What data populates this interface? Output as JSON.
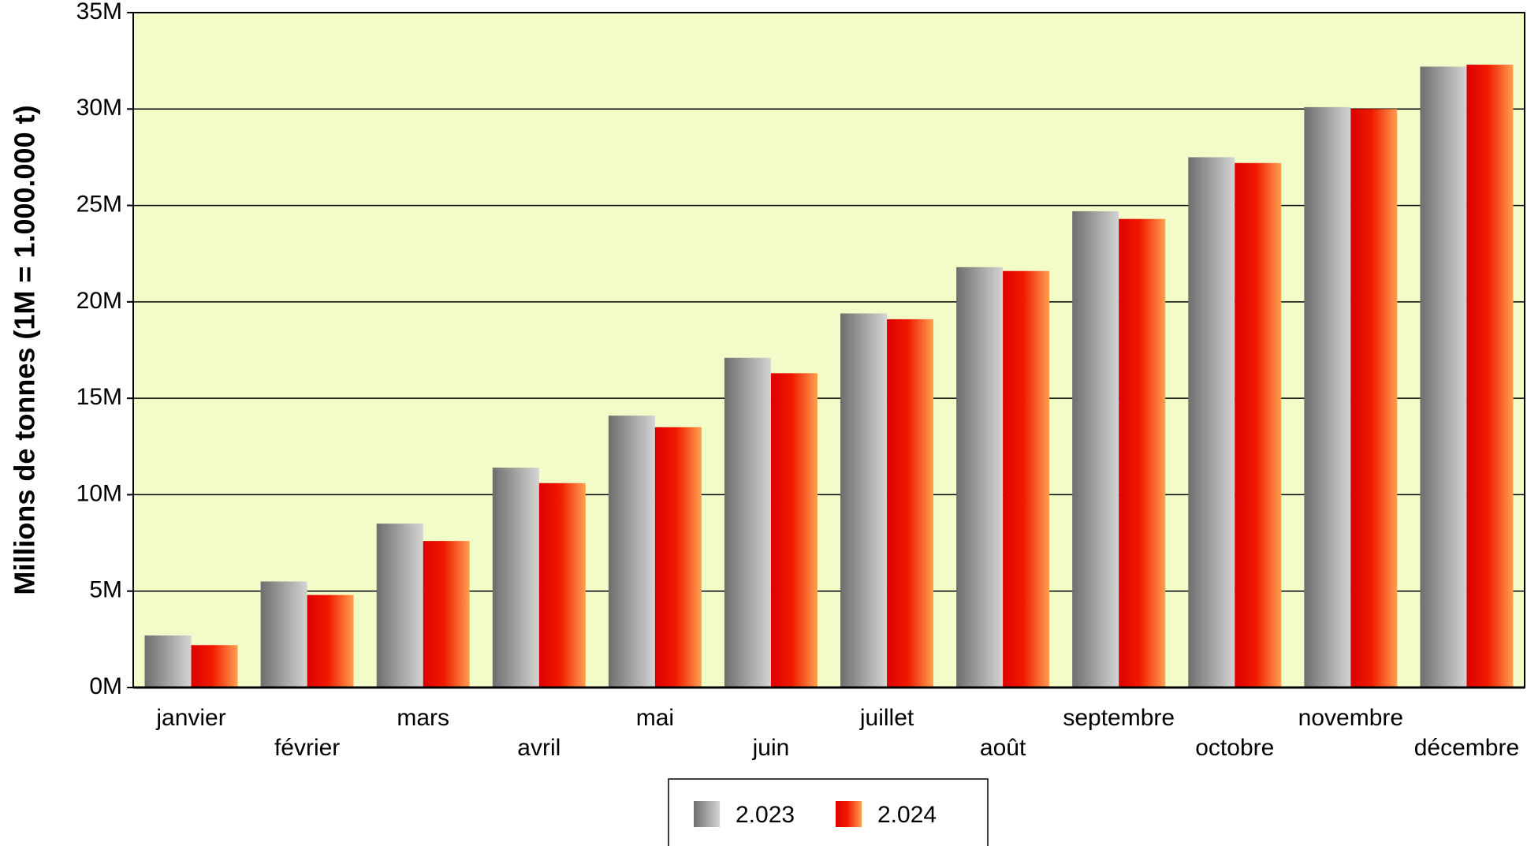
{
  "chart_data": {
    "type": "bar",
    "title": "",
    "xlabel": "",
    "ylabel": "Millions de tonnes (1M = 1.000.000 t)",
    "ylim": [
      0,
      35
    ],
    "y_ticks": [
      "0M",
      "5M",
      "10M",
      "15M",
      "20M",
      "25M",
      "30M",
      "35M"
    ],
    "grid": true,
    "legend_position": "bottom-center",
    "categories": [
      "janvier",
      "février",
      "mars",
      "avril",
      "mai",
      "juin",
      "juillet",
      "août",
      "septembre",
      "octobre",
      "novembre",
      "décembre"
    ],
    "series": [
      {
        "name": "2.023",
        "values": [
          2.7,
          5.5,
          8.5,
          11.4,
          14.1,
          17.1,
          19.4,
          21.8,
          24.7,
          27.5,
          30.1,
          32.2
        ]
      },
      {
        "name": "2.024",
        "values": [
          2.2,
          4.8,
          7.6,
          10.6,
          13.5,
          16.3,
          19.1,
          21.6,
          24.3,
          27.2,
          30.0,
          32.3
        ]
      }
    ]
  },
  "colors": {
    "plot_background": "#f2fcc9",
    "series_2023": [
      "#6e6e6e",
      "#d2d2d2"
    ],
    "series_2024": [
      "#e00000",
      "#ff9a4a"
    ]
  }
}
